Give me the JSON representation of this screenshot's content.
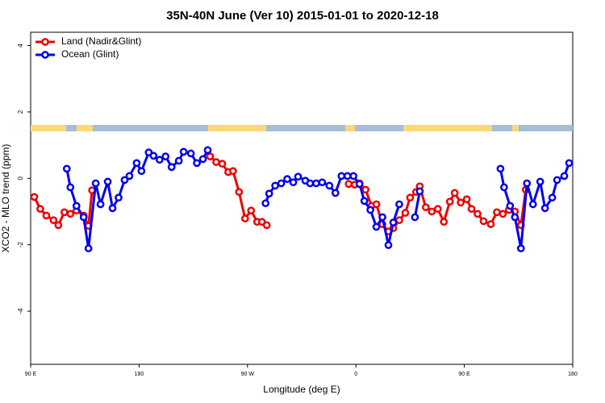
{
  "chart_data": {
    "type": "line",
    "title": "35N-40N June (Ver 10)   2015-01-01 to 2020-12-18",
    "x_label": "Longitude (deg E)",
    "y_label": "XCO2 - MLO trend (ppm)",
    "xlim": [
      90,
      540
    ],
    "xticks": [
      {
        "value": 90,
        "label": "90 E"
      },
      {
        "value": 180,
        "label": "180"
      },
      {
        "value": 270,
        "label": "90 W"
      },
      {
        "value": 360,
        "label": "0"
      },
      {
        "value": 450,
        "label": "90 E"
      },
      {
        "value": 540,
        "label": "180"
      }
    ],
    "ylim": [
      -5.6,
      4.4
    ],
    "yticks": [
      -4,
      -2,
      0,
      2,
      4
    ],
    "legend": "top-left",
    "series": [
      {
        "name": "Land (Nadir&Glint)",
        "color": "#ee0000",
        "x": [
          93,
          98,
          103,
          109,
          113,
          118,
          123,
          128,
          134,
          138,
          141,
          null,
          239,
          244,
          249,
          254,
          258,
          263,
          268,
          273,
          278,
          282,
          286,
          null,
          354,
          359,
          363,
          368,
          373,
          377,
          382,
          387,
          391,
          396,
          401,
          405,
          410,
          413,
          418,
          423,
          428,
          433,
          438,
          442,
          447,
          452,
          456,
          461,
          466,
          472,
          477,
          482,
          487,
          492,
          497,
          501
        ],
        "values": [
          -0.56,
          -0.92,
          -1.12,
          -1.26,
          -1.41,
          -1.02,
          -1.07,
          -0.97,
          -1.12,
          -1.43,
          -0.36,
          null,
          0.66,
          0.49,
          0.44,
          0.19,
          0.22,
          -0.41,
          -1.21,
          -0.97,
          -1.31,
          -1.31,
          -1.41,
          null,
          -0.17,
          -0.19,
          -0.15,
          -0.34,
          -0.83,
          -0.78,
          -1.38,
          -1.6,
          -1.5,
          -1.26,
          -1.04,
          -0.58,
          -0.41,
          -0.24,
          -0.87,
          -1.0,
          -0.92,
          -1.31,
          -0.7,
          -0.44,
          -0.73,
          -0.63,
          -0.92,
          -1.07,
          -1.29,
          -1.38,
          -1.02,
          -1.07,
          -0.95,
          -1.0,
          -1.41,
          -0.34
        ]
      },
      {
        "name": "Ocean (Glint)",
        "color": "#0000ee",
        "x": [
          120,
          123,
          128,
          134,
          138,
          144,
          148,
          154,
          158,
          163,
          168,
          172,
          178,
          182,
          188,
          192,
          197,
          202,
          207,
          213,
          217,
          223,
          228,
          233,
          237,
          null,
          285,
          288,
          293,
          298,
          303,
          308,
          312,
          318,
          322,
          327,
          332,
          338,
          343,
          348,
          353,
          358,
          363,
          367,
          372,
          377,
          382,
          387,
          391,
          396,
          null,
          409,
          413,
          null,
          480,
          483,
          488,
          492,
          497,
          502,
          507,
          513,
          517,
          523,
          527,
          533,
          537
        ],
        "values": [
          0.29,
          -0.27,
          -0.83,
          -1.17,
          -2.11,
          -0.15,
          -0.78,
          -0.1,
          -0.9,
          -0.58,
          -0.05,
          0.07,
          0.46,
          0.22,
          0.78,
          0.68,
          0.56,
          0.66,
          0.34,
          0.53,
          0.8,
          0.75,
          0.46,
          0.58,
          0.85,
          null,
          -0.75,
          -0.46,
          -0.22,
          -0.15,
          -0.02,
          -0.12,
          0.05,
          -0.07,
          -0.15,
          -0.15,
          -0.12,
          -0.22,
          -0.44,
          0.07,
          0.07,
          0.07,
          -0.17,
          -0.68,
          -0.95,
          -1.46,
          -1.17,
          -2.01,
          -1.33,
          -0.78,
          null,
          -1.17,
          -0.39,
          null,
          0.29,
          -0.27,
          -0.83,
          -1.17,
          -2.11,
          -0.15,
          -0.78,
          -0.1,
          -0.9,
          -0.58,
          -0.05,
          0.07,
          0.46
        ]
      }
    ]
  }
}
